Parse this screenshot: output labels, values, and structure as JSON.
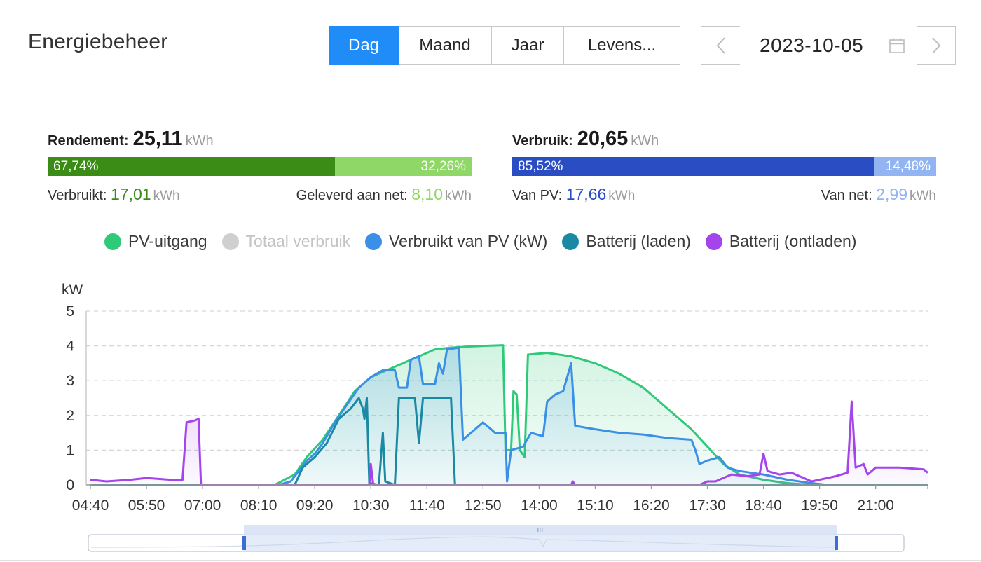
{
  "header": {
    "title": "Energiebeheer",
    "tabs": [
      {
        "label": "Dag",
        "active": true
      },
      {
        "label": "Maand",
        "active": false
      },
      {
        "label": "Jaar",
        "active": false
      },
      {
        "label": "Levens...",
        "active": false
      }
    ],
    "date": "2023-10-05",
    "prev_icon": "chevron-left-icon",
    "next_icon": "chevron-right-icon",
    "calendar_icon": "calendar-icon"
  },
  "yield": {
    "label": "Rendement:",
    "value": "25,11",
    "unit": "kWh",
    "self_pct": "67,74%",
    "grid_pct": "32,26%",
    "self_fraction": 0.6774,
    "consumed_label": "Verbruikt:",
    "consumed_value": "17,01",
    "consumed_unit": "kWh",
    "fed_label": "Geleverd aan net:",
    "fed_value": "8,10",
    "fed_unit": "kWh",
    "colors": {
      "dark": "#3a8c17",
      "light": "#8fd867"
    }
  },
  "consumption": {
    "label": "Verbruik:",
    "value": "20,65",
    "unit": "kWh",
    "pv_pct": "85,52%",
    "grid_pct": "14,48%",
    "pv_fraction": 0.8552,
    "from_pv_label": "Van PV:",
    "from_pv_value": "17,66",
    "from_pv_unit": "kWh",
    "from_grid_label": "Van net:",
    "from_grid_value": "2,99",
    "from_grid_unit": "kWh",
    "colors": {
      "dark": "#2a4dc4",
      "light": "#92b4f2"
    }
  },
  "legend": [
    {
      "label": "PV-uitgang",
      "color": "#2fc97a",
      "active": true
    },
    {
      "label": "Totaal verbruik",
      "color": "#cfcfcf",
      "active": false
    },
    {
      "label": "Verbruikt van PV (kW)",
      "color": "#3a8fe6",
      "active": true
    },
    {
      "label": "Batterij (laden)",
      "color": "#1a8aa4",
      "active": true
    },
    {
      "label": "Batterij (ontladen)",
      "color": "#a444ea",
      "active": true
    }
  ],
  "chart_data": {
    "type": "line",
    "ylabel": "kW",
    "ylim": [
      0,
      5
    ],
    "yticks": [
      0,
      1,
      2,
      3,
      4,
      5
    ],
    "xlim": [
      "04:40",
      "22:05"
    ],
    "xticks": [
      "04:40",
      "05:50",
      "07:00",
      "08:10",
      "09:20",
      "10:30",
      "11:40",
      "12:50",
      "14:00",
      "15:10",
      "16:20",
      "17:30",
      "18:40",
      "19:50",
      "21:00"
    ],
    "grid": true,
    "series": [
      {
        "name": "PV-uitgang",
        "color": "#2fc97a",
        "fill": true,
        "points": [
          [
            "04:40",
            0
          ],
          [
            "08:30",
            0
          ],
          [
            "08:55",
            0.3
          ],
          [
            "09:10",
            0.8
          ],
          [
            "09:30",
            1.3
          ],
          [
            "09:50",
            2.0
          ],
          [
            "10:10",
            2.7
          ],
          [
            "10:30",
            3.1
          ],
          [
            "10:50",
            3.3
          ],
          [
            "11:10",
            3.5
          ],
          [
            "11:30",
            3.7
          ],
          [
            "11:50",
            3.9
          ],
          [
            "12:10",
            3.95
          ],
          [
            "12:30",
            3.98
          ],
          [
            "12:50",
            4.0
          ],
          [
            "13:15",
            4.02
          ],
          [
            "13:18",
            1.0
          ],
          [
            "13:25",
            1.0
          ],
          [
            "13:28",
            2.7
          ],
          [
            "13:32",
            2.6
          ],
          [
            "13:36",
            1.0
          ],
          [
            "13:42",
            0.8
          ],
          [
            "13:46",
            3.75
          ],
          [
            "14:10",
            3.8
          ],
          [
            "14:40",
            3.7
          ],
          [
            "15:10",
            3.5
          ],
          [
            "15:40",
            3.2
          ],
          [
            "16:10",
            2.8
          ],
          [
            "16:40",
            2.2
          ],
          [
            "17:10",
            1.6
          ],
          [
            "17:30",
            1.1
          ],
          [
            "17:50",
            0.6
          ],
          [
            "18:10",
            0.3
          ],
          [
            "18:40",
            0.15
          ],
          [
            "19:10",
            0.05
          ],
          [
            "19:40",
            0
          ],
          [
            "22:05",
            0
          ]
        ]
      },
      {
        "name": "Verbruikt van PV (kW)",
        "color": "#3a8fe6",
        "fill": true,
        "points": [
          [
            "04:40",
            0
          ],
          [
            "08:35",
            0
          ],
          [
            "08:50",
            0.1
          ],
          [
            "09:00",
            0.4
          ],
          [
            "09:10",
            0.7
          ],
          [
            "09:20",
            0.9
          ],
          [
            "09:30",
            1.2
          ],
          [
            "09:45",
            1.8
          ],
          [
            "10:00",
            2.3
          ],
          [
            "10:15",
            2.8
          ],
          [
            "10:30",
            3.1
          ],
          [
            "10:45",
            3.3
          ],
          [
            "11:00",
            3.3
          ],
          [
            "11:05",
            2.8
          ],
          [
            "11:15",
            2.8
          ],
          [
            "11:20",
            3.6
          ],
          [
            "11:30",
            3.7
          ],
          [
            "11:35",
            2.9
          ],
          [
            "11:50",
            2.9
          ],
          [
            "11:55",
            3.5
          ],
          [
            "12:00",
            3.2
          ],
          [
            "12:05",
            3.9
          ],
          [
            "12:20",
            3.95
          ],
          [
            "12:25",
            1.3
          ],
          [
            "12:35",
            1.5
          ],
          [
            "12:50",
            1.8
          ],
          [
            "13:00",
            1.6
          ],
          [
            "13:05",
            1.5
          ],
          [
            "13:18",
            1.5
          ],
          [
            "13:20",
            0.1
          ],
          [
            "13:25",
            1.0
          ],
          [
            "13:40",
            1.1
          ],
          [
            "13:50",
            1.5
          ],
          [
            "14:05",
            1.4
          ],
          [
            "14:10",
            2.4
          ],
          [
            "14:20",
            2.6
          ],
          [
            "14:30",
            2.7
          ],
          [
            "14:40",
            3.5
          ],
          [
            "14:45",
            1.7
          ],
          [
            "15:10",
            1.6
          ],
          [
            "15:40",
            1.5
          ],
          [
            "16:10",
            1.45
          ],
          [
            "16:40",
            1.35
          ],
          [
            "17:10",
            1.3
          ],
          [
            "17:15",
            1.0
          ],
          [
            "17:20",
            0.6
          ],
          [
            "17:30",
            0.7
          ],
          [
            "17:45",
            0.8
          ],
          [
            "17:55",
            0.5
          ],
          [
            "18:10",
            0.4
          ],
          [
            "18:40",
            0.3
          ],
          [
            "19:10",
            0.15
          ],
          [
            "19:40",
            0.05
          ],
          [
            "20:00",
            0
          ],
          [
            "22:05",
            0
          ]
        ]
      },
      {
        "name": "Batterij (laden)",
        "color": "#1a8aa4",
        "fill": false,
        "points": [
          [
            "04:40",
            0
          ],
          [
            "08:55",
            0
          ],
          [
            "09:05",
            0.5
          ],
          [
            "09:20",
            0.8
          ],
          [
            "09:35",
            1.2
          ],
          [
            "09:50",
            1.9
          ],
          [
            "10:05",
            2.2
          ],
          [
            "10:15",
            2.5
          ],
          [
            "10:20",
            2.2
          ],
          [
            "10:22",
            1.9
          ],
          [
            "10:25",
            2.5
          ],
          [
            "10:28",
            0.05
          ],
          [
            "10:40",
            0
          ],
          [
            "10:45",
            1.5
          ],
          [
            "10:48",
            0.1
          ],
          [
            "11:00",
            0
          ],
          [
            "11:05",
            2.5
          ],
          [
            "11:25",
            2.5
          ],
          [
            "11:30",
            1.2
          ],
          [
            "11:35",
            2.5
          ],
          [
            "12:10",
            2.5
          ],
          [
            "12:15",
            0
          ],
          [
            "22:05",
            0
          ]
        ]
      },
      {
        "name": "Batterij (ontladen)",
        "color": "#a444ea",
        "fill": true,
        "points": [
          [
            "04:40",
            0.15
          ],
          [
            "05:00",
            0.1
          ],
          [
            "05:30",
            0.15
          ],
          [
            "05:50",
            0.2
          ],
          [
            "06:20",
            0.15
          ],
          [
            "06:35",
            0.15
          ],
          [
            "06:40",
            1.8
          ],
          [
            "06:50",
            1.85
          ],
          [
            "06:55",
            1.9
          ],
          [
            "06:58",
            0
          ],
          [
            "10:28",
            0
          ],
          [
            "10:30",
            0.6
          ],
          [
            "10:33",
            0
          ],
          [
            "14:40",
            0
          ],
          [
            "14:42",
            0.1
          ],
          [
            "14:45",
            0
          ],
          [
            "17:20",
            0
          ],
          [
            "17:30",
            0.1
          ],
          [
            "17:40",
            0.1
          ],
          [
            "18:00",
            0.3
          ],
          [
            "18:20",
            0.25
          ],
          [
            "18:35",
            0.3
          ],
          [
            "18:40",
            0.9
          ],
          [
            "18:45",
            0.4
          ],
          [
            "19:00",
            0.3
          ],
          [
            "19:15",
            0.35
          ],
          [
            "19:40",
            0.1
          ],
          [
            "20:10",
            0.25
          ],
          [
            "20:25",
            0.35
          ],
          [
            "20:30",
            2.4
          ],
          [
            "20:35",
            0.5
          ],
          [
            "20:45",
            0.6
          ],
          [
            "20:50",
            0.3
          ],
          [
            "21:00",
            0.5
          ],
          [
            "21:30",
            0.5
          ],
          [
            "22:00",
            0.45
          ],
          [
            "22:05",
            0.35
          ]
        ]
      }
    ]
  }
}
